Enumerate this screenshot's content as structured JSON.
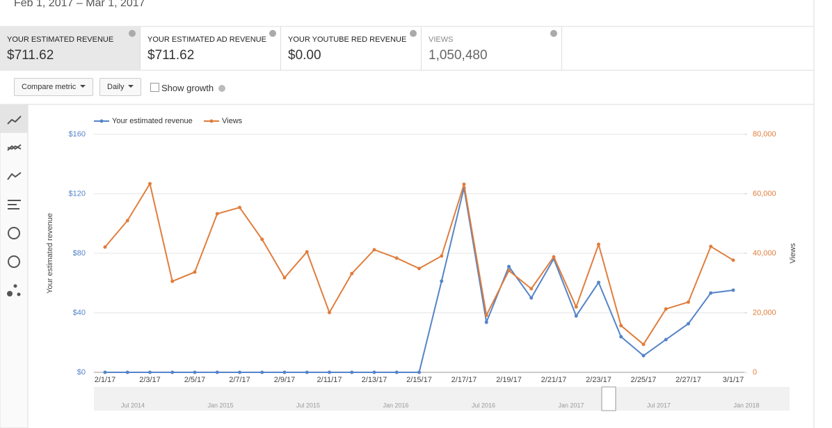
{
  "header": {
    "date_range": "Feb 1, 2017 – Mar 1, 2017"
  },
  "cards": [
    {
      "label": "YOUR ESTIMATED REVENUE",
      "value": "$711.62"
    },
    {
      "label": "YOUR ESTIMATED AD REVENUE",
      "value": "$711.62"
    },
    {
      "label": "YOUR YOUTUBE RED REVENUE",
      "value": "$0.00"
    },
    {
      "label": "VIEWS",
      "value": "1,050,480"
    }
  ],
  "controls": {
    "compare": "Compare metric",
    "interval": "Daily",
    "growth": "Show growth"
  },
  "navigator": {
    "labels": [
      "Jul 2014",
      "Jan 2015",
      "Jul 2015",
      "Jan 2016",
      "Jul 2016",
      "Jan 2017",
      "Jul 2017",
      "Jan 2018"
    ]
  },
  "chart_data": {
    "type": "line",
    "y_label": "Your estimated revenue",
    "y2_label": "Views",
    "categories": [
      "2/1/17",
      null,
      "2/3/17",
      null,
      "2/5/17",
      null,
      "2/7/17",
      null,
      "2/9/17",
      null,
      "2/11/17",
      null,
      "2/13/17",
      null,
      "2/15/17",
      null,
      "2/17/17",
      null,
      "2/19/17",
      null,
      "2/21/17",
      null,
      "2/23/17",
      null,
      "2/25/17",
      null,
      "2/27/17",
      null,
      "3/1/17"
    ],
    "series": [
      {
        "name": "Your estimated revenue",
        "color": "#5584c8",
        "values": [
          0,
          0,
          0,
          0,
          0,
          0,
          0,
          0,
          0,
          0,
          0,
          0,
          0,
          0,
          0,
          61.3,
          124,
          33.7,
          71.1,
          50,
          76.3,
          37.9,
          60.4,
          23.9,
          11.2,
          22,
          32.7,
          53.3,
          55.2
        ]
      },
      {
        "name": "Views",
        "color": "#e07d3c",
        "axis": "y2",
        "values": [
          42100,
          51000,
          63400,
          30600,
          33700,
          53300,
          55400,
          44700,
          31800,
          40500,
          20100,
          33200,
          41200,
          38400,
          34900,
          39100,
          63200,
          19200,
          34200,
          28100,
          38800,
          22000,
          43000,
          15700,
          9400,
          21300,
          23600,
          42300,
          37700
        ]
      }
    ],
    "ylim": [
      0,
      160
    ],
    "yticks": [
      {
        "value": 0,
        "label": "$0"
      },
      {
        "value": 40,
        "label": "$40"
      },
      {
        "value": 80,
        "label": "$80"
      },
      {
        "value": 120,
        "label": "$120"
      },
      {
        "value": 160,
        "label": "$160"
      }
    ],
    "y2lim": [
      0,
      80000
    ],
    "y2ticks": [
      0,
      {
        "value": 20000,
        "label": "20,000"
      },
      {
        "value": 40000,
        "label": "40,000"
      },
      {
        "value": 60000,
        "label": "60,000"
      },
      {
        "value": 80000,
        "label": "80,000"
      }
    ],
    "grid": true
  }
}
